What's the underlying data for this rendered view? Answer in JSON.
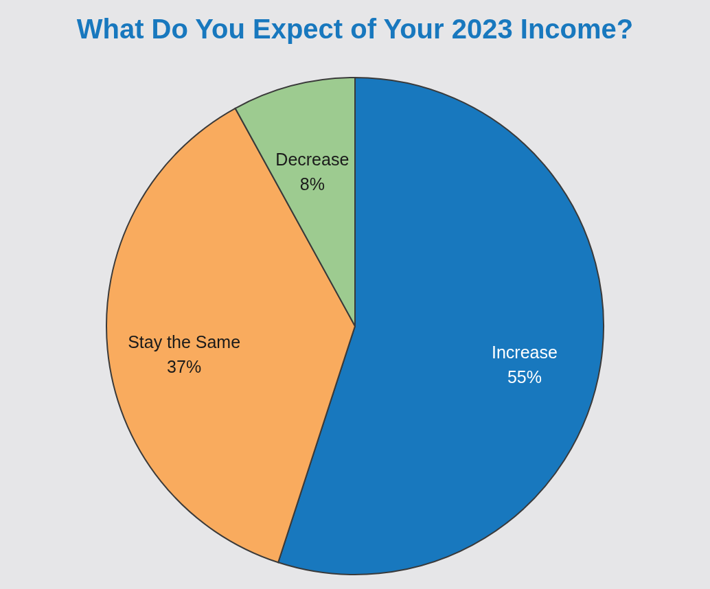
{
  "chart_data": {
    "type": "pie",
    "title": "What Do You Expect of Your 2023 Income?",
    "categories": [
      "Increase",
      "Stay the Same",
      "Decrease"
    ],
    "values": [
      55,
      37,
      8
    ],
    "colors": [
      "#1878be",
      "#f9ab5e",
      "#9dcb90"
    ],
    "value_labels": [
      "55%",
      "37%",
      "8%"
    ]
  }
}
